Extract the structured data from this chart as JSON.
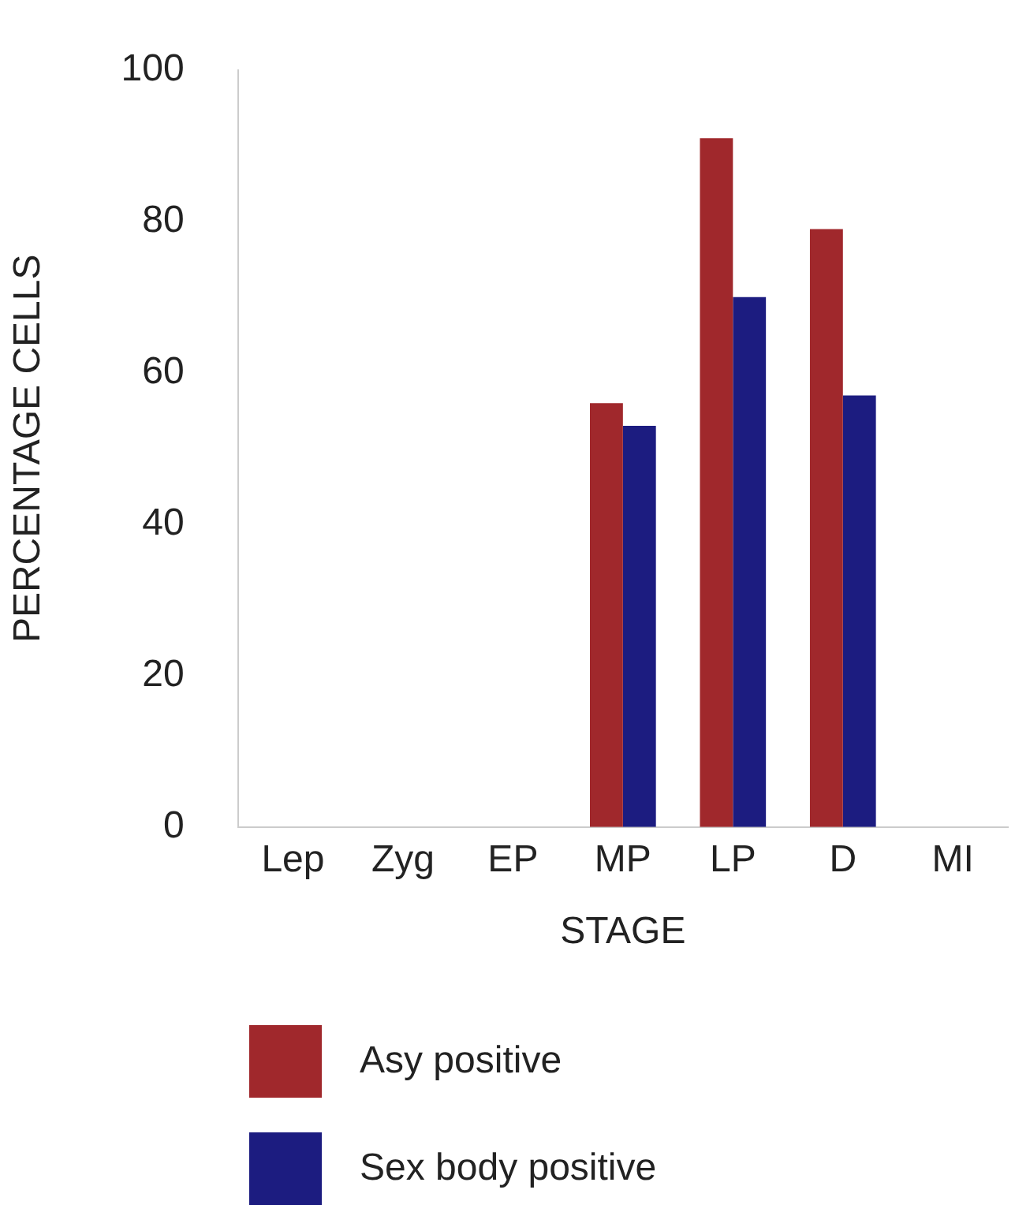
{
  "chart_data": {
    "type": "bar",
    "xlabel": "STAGE",
    "ylabel": "PERCENTAGE CELLS",
    "categories": [
      "Lep",
      "Zyg",
      "EP",
      "MP",
      "LP",
      "D",
      "MI"
    ],
    "series": [
      {
        "name": "Asy positive",
        "color": "#a0282c",
        "values": [
          0,
          0,
          0,
          56,
          91,
          79,
          0
        ]
      },
      {
        "name": "Sex body positive",
        "color": "#1c1c80",
        "values": [
          0,
          0,
          0,
          53,
          70,
          57,
          0
        ]
      }
    ],
    "ylim": [
      0,
      100
    ],
    "yticks": [
      0,
      20,
      40,
      60,
      80,
      100
    ],
    "grid": false,
    "legend": "bottom"
  }
}
